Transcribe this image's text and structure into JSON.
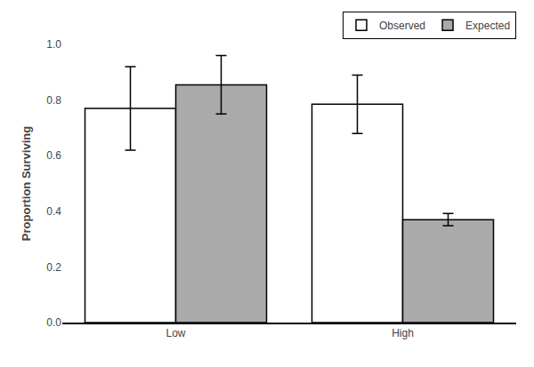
{
  "chart_data": {
    "type": "bar",
    "ylabel": "Proportion Surviving",
    "categories": [
      "Low",
      "High"
    ],
    "series": [
      {
        "name": "Observed",
        "color": "#ffffff",
        "values": [
          0.77,
          0.785
        ],
        "errors": [
          0.15,
          0.105
        ]
      },
      {
        "name": "Expected",
        "color": "#aaaaaa",
        "values": [
          0.855,
          0.37
        ],
        "errors": [
          0.105,
          0.022
        ]
      }
    ],
    "ylim": [
      0.0,
      1.0
    ],
    "yticks": [
      {
        "value": 0.0,
        "label": "0.0"
      },
      0.2,
      0.4,
      0.6,
      0.8,
      {
        "value": 1.0,
        "label": "1.0"
      }
    ],
    "grid": false,
    "legend": "upper right"
  }
}
